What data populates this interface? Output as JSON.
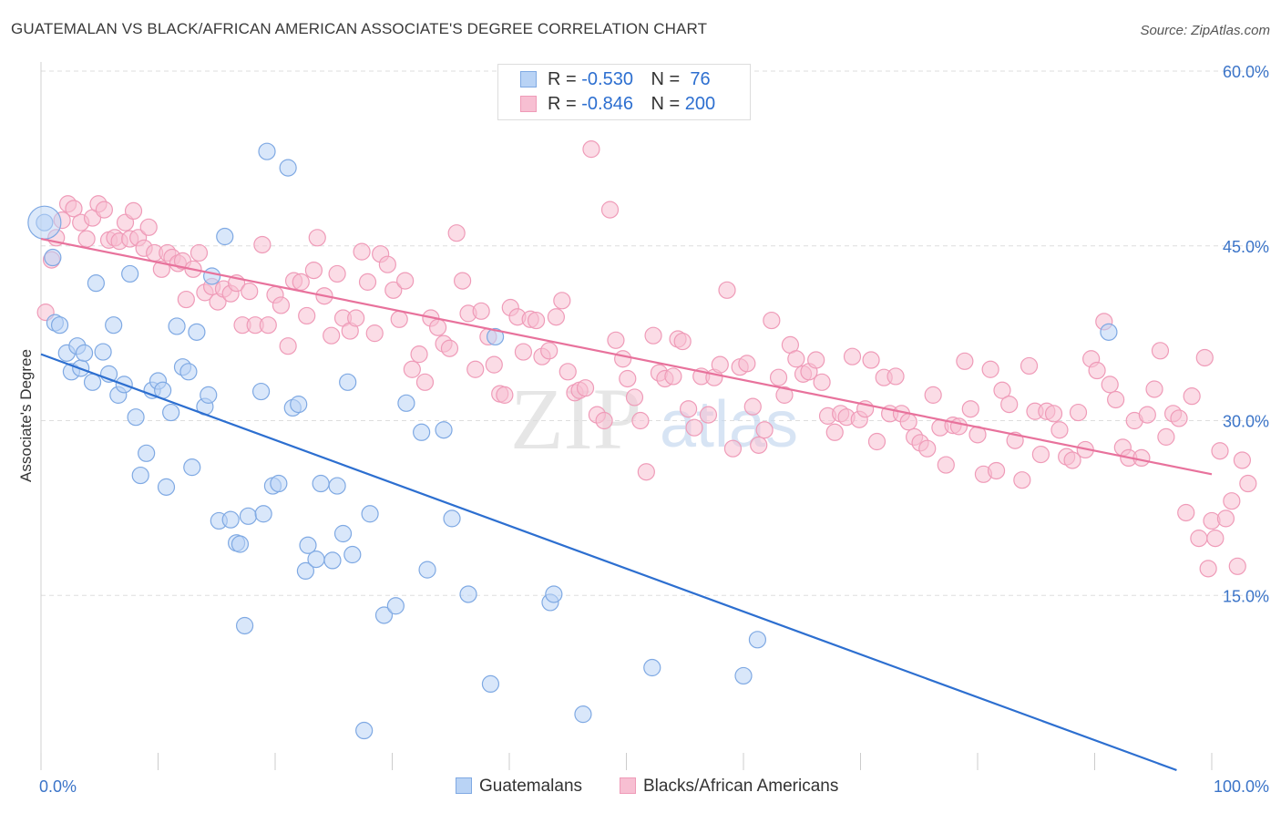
{
  "title": "GUATEMALAN VS BLACK/AFRICAN AMERICAN ASSOCIATE'S DEGREE CORRELATION CHART",
  "source": "Source: ZipAtlas.com",
  "watermark": {
    "zip": "ZIP",
    "atlas": "atlas"
  },
  "colors": {
    "blue": "#2d6fd0",
    "blue_fill": "#b9d3f5",
    "pink": "#e8729c",
    "pink_fill": "#f7bfd2",
    "axis_text": "#3b74c8"
  },
  "legend": {
    "rows": [
      {
        "r_label": "R =",
        "r_value": "-0.530",
        "n_label": "N =",
        "n_value": " 76"
      },
      {
        "r_label": "R =",
        "r_value": "-0.846",
        "n_label": "N =",
        "n_value": "200"
      }
    ]
  },
  "bottom_legend": [
    "Guatemalans",
    "Blacks/African Americans"
  ],
  "chart_data": {
    "type": "scatter",
    "title": "GUATEMALAN VS BLACK/AFRICAN AMERICAN ASSOCIATE'S DEGREE CORRELATION CHART",
    "xlabel": "",
    "ylabel": "Associate's Degree",
    "xlim": [
      0,
      100
    ],
    "ylim": [
      0,
      60
    ],
    "x_tick_labels": [
      "0.0%",
      "100.0%"
    ],
    "y_ticks": [
      15,
      30,
      45,
      60
    ],
    "y_tick_labels": [
      "15.0%",
      "30.0%",
      "45.0%",
      "60.0%"
    ],
    "grid": "horizontal dashed",
    "legend_placement": "top-center",
    "series": [
      {
        "name": "Guatemalans",
        "color": "#2d6fd0",
        "trend": {
          "x": [
            0,
            97
          ],
          "y": [
            35.7,
            0
          ]
        },
        "points": [
          [
            0.3,
            47.0
          ],
          [
            1.0,
            44.0
          ],
          [
            1.2,
            38.4
          ],
          [
            1.6,
            38.2
          ],
          [
            2.2,
            35.8
          ],
          [
            2.6,
            34.2
          ],
          [
            3.1,
            36.4
          ],
          [
            3.4,
            34.5
          ],
          [
            3.7,
            35.8
          ],
          [
            4.4,
            33.3
          ],
          [
            4.7,
            41.8
          ],
          [
            5.3,
            35.9
          ],
          [
            5.8,
            34.0
          ],
          [
            6.2,
            38.2
          ],
          [
            6.6,
            32.2
          ],
          [
            7.1,
            33.1
          ],
          [
            7.6,
            42.6
          ],
          [
            8.1,
            30.3
          ],
          [
            8.5,
            25.3
          ],
          [
            9.0,
            27.2
          ],
          [
            9.5,
            32.6
          ],
          [
            10.0,
            33.4
          ],
          [
            10.4,
            32.6
          ],
          [
            10.7,
            24.3
          ],
          [
            11.1,
            30.7
          ],
          [
            11.6,
            38.1
          ],
          [
            12.1,
            34.6
          ],
          [
            12.6,
            34.2
          ],
          [
            12.9,
            26.0
          ],
          [
            13.3,
            37.6
          ],
          [
            14.0,
            31.2
          ],
          [
            14.3,
            32.2
          ],
          [
            14.6,
            42.4
          ],
          [
            15.2,
            21.4
          ],
          [
            15.7,
            45.8
          ],
          [
            16.2,
            21.5
          ],
          [
            16.7,
            19.5
          ],
          [
            17.0,
            19.4
          ],
          [
            17.4,
            12.4
          ],
          [
            17.7,
            21.8
          ],
          [
            18.8,
            32.5
          ],
          [
            19.0,
            22.0
          ],
          [
            19.3,
            53.1
          ],
          [
            19.8,
            24.4
          ],
          [
            20.3,
            24.6
          ],
          [
            21.1,
            51.7
          ],
          [
            21.5,
            31.1
          ],
          [
            22.0,
            31.4
          ],
          [
            22.6,
            17.1
          ],
          [
            22.8,
            19.3
          ],
          [
            23.5,
            18.1
          ],
          [
            23.9,
            24.6
          ],
          [
            24.9,
            18.0
          ],
          [
            25.3,
            24.4
          ],
          [
            25.8,
            20.3
          ],
          [
            26.2,
            33.3
          ],
          [
            26.6,
            18.5
          ],
          [
            27.6,
            3.4
          ],
          [
            28.1,
            22.0
          ],
          [
            29.3,
            13.3
          ],
          [
            30.3,
            14.1
          ],
          [
            31.2,
            31.5
          ],
          [
            32.5,
            29.0
          ],
          [
            33.0,
            17.2
          ],
          [
            34.4,
            29.2
          ],
          [
            35.1,
            21.6
          ],
          [
            36.5,
            15.1
          ],
          [
            38.4,
            7.4
          ],
          [
            38.8,
            37.2
          ],
          [
            43.5,
            14.4
          ],
          [
            43.8,
            15.1
          ],
          [
            46.3,
            4.8
          ],
          [
            52.2,
            8.8
          ],
          [
            60.0,
            8.1
          ],
          [
            61.2,
            11.2
          ],
          [
            91.2,
            37.6
          ]
        ]
      },
      {
        "name": "Blacks/African Americans",
        "color": "#e8729c",
        "trend": {
          "x": [
            0,
            100
          ],
          "y": [
            45.6,
            25.4
          ]
        },
        "points": [
          [
            0.4,
            39.3
          ],
          [
            0.9,
            43.8
          ],
          [
            1.3,
            45.7
          ],
          [
            1.8,
            47.2
          ],
          [
            2.3,
            48.6
          ],
          [
            2.8,
            48.2
          ],
          [
            3.4,
            47.0
          ],
          [
            3.9,
            45.6
          ],
          [
            4.4,
            47.4
          ],
          [
            4.9,
            48.6
          ],
          [
            5.4,
            48.1
          ],
          [
            5.8,
            45.5
          ],
          [
            6.3,
            45.7
          ],
          [
            6.7,
            45.4
          ],
          [
            7.2,
            47.0
          ],
          [
            7.6,
            45.6
          ],
          [
            7.9,
            48.0
          ],
          [
            8.3,
            45.7
          ],
          [
            8.8,
            44.8
          ],
          [
            9.2,
            46.6
          ],
          [
            9.7,
            44.4
          ],
          [
            10.3,
            43.0
          ],
          [
            10.8,
            44.4
          ],
          [
            11.2,
            44.0
          ],
          [
            11.7,
            43.5
          ],
          [
            12.1,
            43.7
          ],
          [
            12.4,
            40.4
          ],
          [
            13.0,
            43.0
          ],
          [
            13.5,
            44.4
          ],
          [
            14.0,
            41.0
          ],
          [
            14.6,
            41.5
          ],
          [
            15.1,
            40.2
          ],
          [
            15.6,
            41.3
          ],
          [
            16.2,
            40.9
          ],
          [
            16.7,
            41.8
          ],
          [
            17.2,
            38.2
          ],
          [
            17.8,
            41.1
          ],
          [
            18.3,
            38.2
          ],
          [
            18.9,
            45.1
          ],
          [
            19.4,
            38.2
          ],
          [
            20.0,
            40.8
          ],
          [
            20.5,
            39.9
          ],
          [
            21.1,
            36.4
          ],
          [
            21.6,
            42.0
          ],
          [
            22.2,
            41.9
          ],
          [
            22.7,
            39.0
          ],
          [
            23.3,
            42.9
          ],
          [
            23.6,
            45.7
          ],
          [
            24.2,
            40.7
          ],
          [
            24.8,
            37.3
          ],
          [
            25.3,
            42.6
          ],
          [
            25.8,
            38.8
          ],
          [
            26.4,
            37.7
          ],
          [
            26.9,
            38.8
          ],
          [
            27.4,
            44.5
          ],
          [
            27.9,
            41.9
          ],
          [
            28.5,
            37.5
          ],
          [
            29.0,
            44.3
          ],
          [
            29.6,
            43.4
          ],
          [
            30.1,
            41.2
          ],
          [
            30.6,
            38.7
          ],
          [
            31.1,
            42.0
          ],
          [
            31.7,
            34.4
          ],
          [
            32.3,
            35.7
          ],
          [
            32.8,
            33.3
          ],
          [
            33.3,
            38.8
          ],
          [
            33.9,
            38.0
          ],
          [
            34.4,
            36.6
          ],
          [
            34.9,
            36.2
          ],
          [
            35.5,
            46.1
          ],
          [
            36.0,
            42.0
          ],
          [
            36.5,
            39.2
          ],
          [
            37.1,
            34.4
          ],
          [
            37.6,
            39.4
          ],
          [
            38.2,
            37.2
          ],
          [
            38.7,
            34.8
          ],
          [
            39.2,
            32.3
          ],
          [
            39.6,
            32.2
          ],
          [
            40.1,
            39.7
          ],
          [
            40.7,
            38.9
          ],
          [
            41.2,
            35.9
          ],
          [
            41.8,
            38.7
          ],
          [
            42.3,
            38.6
          ],
          [
            42.8,
            35.5
          ],
          [
            43.4,
            36.0
          ],
          [
            44.0,
            38.9
          ],
          [
            44.5,
            40.3
          ],
          [
            45.0,
            34.2
          ],
          [
            45.6,
            32.4
          ],
          [
            46.0,
            32.6
          ],
          [
            46.5,
            32.8
          ],
          [
            47.0,
            53.3
          ],
          [
            47.5,
            30.5
          ],
          [
            48.1,
            30.0
          ],
          [
            48.6,
            48.1
          ],
          [
            49.1,
            36.9
          ],
          [
            49.7,
            35.3
          ],
          [
            50.1,
            33.6
          ],
          [
            50.7,
            32.0
          ],
          [
            51.2,
            30.0
          ],
          [
            51.7,
            25.6
          ],
          [
            52.3,
            37.3
          ],
          [
            52.8,
            34.1
          ],
          [
            53.3,
            33.6
          ],
          [
            54.0,
            33.8
          ],
          [
            54.4,
            37.0
          ],
          [
            54.8,
            36.8
          ],
          [
            55.3,
            31.0
          ],
          [
            55.8,
            29.4
          ],
          [
            56.4,
            33.8
          ],
          [
            57.0,
            30.5
          ],
          [
            57.5,
            33.7
          ],
          [
            58.0,
            34.8
          ],
          [
            58.6,
            41.2
          ],
          [
            59.1,
            27.6
          ],
          [
            59.7,
            34.6
          ],
          [
            60.3,
            34.9
          ],
          [
            60.8,
            31.2
          ],
          [
            61.3,
            27.9
          ],
          [
            61.8,
            29.2
          ],
          [
            62.4,
            38.6
          ],
          [
            63.0,
            33.7
          ],
          [
            63.5,
            32.2
          ],
          [
            64.0,
            36.5
          ],
          [
            64.5,
            35.3
          ],
          [
            65.1,
            34.0
          ],
          [
            65.6,
            34.2
          ],
          [
            66.2,
            35.2
          ],
          [
            66.7,
            33.3
          ],
          [
            67.2,
            30.4
          ],
          [
            67.8,
            29.0
          ],
          [
            68.3,
            30.6
          ],
          [
            68.8,
            30.3
          ],
          [
            69.3,
            35.5
          ],
          [
            69.9,
            30.1
          ],
          [
            70.4,
            31.0
          ],
          [
            70.9,
            35.2
          ],
          [
            71.4,
            28.2
          ],
          [
            72.0,
            33.7
          ],
          [
            72.5,
            30.6
          ],
          [
            73.0,
            33.8
          ],
          [
            73.5,
            30.6
          ],
          [
            74.1,
            29.9
          ],
          [
            74.6,
            28.6
          ],
          [
            75.1,
            28.1
          ],
          [
            75.7,
            27.6
          ],
          [
            76.2,
            32.2
          ],
          [
            76.8,
            29.4
          ],
          [
            77.3,
            26.2
          ],
          [
            77.9,
            29.6
          ],
          [
            78.4,
            29.5
          ],
          [
            78.9,
            35.1
          ],
          [
            79.4,
            31.0
          ],
          [
            80.0,
            28.8
          ],
          [
            80.5,
            25.4
          ],
          [
            81.1,
            34.4
          ],
          [
            81.6,
            25.7
          ],
          [
            82.1,
            32.6
          ],
          [
            82.7,
            31.4
          ],
          [
            83.2,
            28.3
          ],
          [
            83.8,
            24.9
          ],
          [
            84.4,
            34.7
          ],
          [
            84.9,
            30.8
          ],
          [
            85.4,
            27.1
          ],
          [
            85.9,
            30.8
          ],
          [
            86.5,
            30.6
          ],
          [
            87.0,
            29.2
          ],
          [
            87.6,
            26.9
          ],
          [
            88.1,
            26.6
          ],
          [
            88.6,
            30.7
          ],
          [
            89.2,
            27.5
          ],
          [
            89.7,
            35.3
          ],
          [
            90.2,
            34.3
          ],
          [
            90.8,
            38.5
          ],
          [
            91.3,
            33.1
          ],
          [
            91.8,
            31.8
          ],
          [
            92.4,
            27.7
          ],
          [
            92.9,
            26.8
          ],
          [
            93.4,
            30.0
          ],
          [
            94.0,
            26.8
          ],
          [
            94.5,
            30.5
          ],
          [
            95.1,
            32.7
          ],
          [
            95.6,
            36.0
          ],
          [
            96.1,
            28.6
          ],
          [
            96.7,
            30.6
          ],
          [
            97.2,
            30.2
          ],
          [
            97.8,
            22.1
          ],
          [
            98.3,
            32.1
          ],
          [
            98.9,
            19.9
          ],
          [
            99.4,
            35.4
          ],
          [
            99.7,
            17.3
          ],
          [
            100.0,
            21.4
          ],
          [
            100.3,
            19.9
          ],
          [
            100.7,
            27.4
          ],
          [
            101.2,
            21.6
          ],
          [
            101.7,
            23.1
          ],
          [
            102.2,
            17.5
          ],
          [
            102.6,
            26.6
          ],
          [
            103.1,
            24.6
          ]
        ]
      }
    ]
  }
}
